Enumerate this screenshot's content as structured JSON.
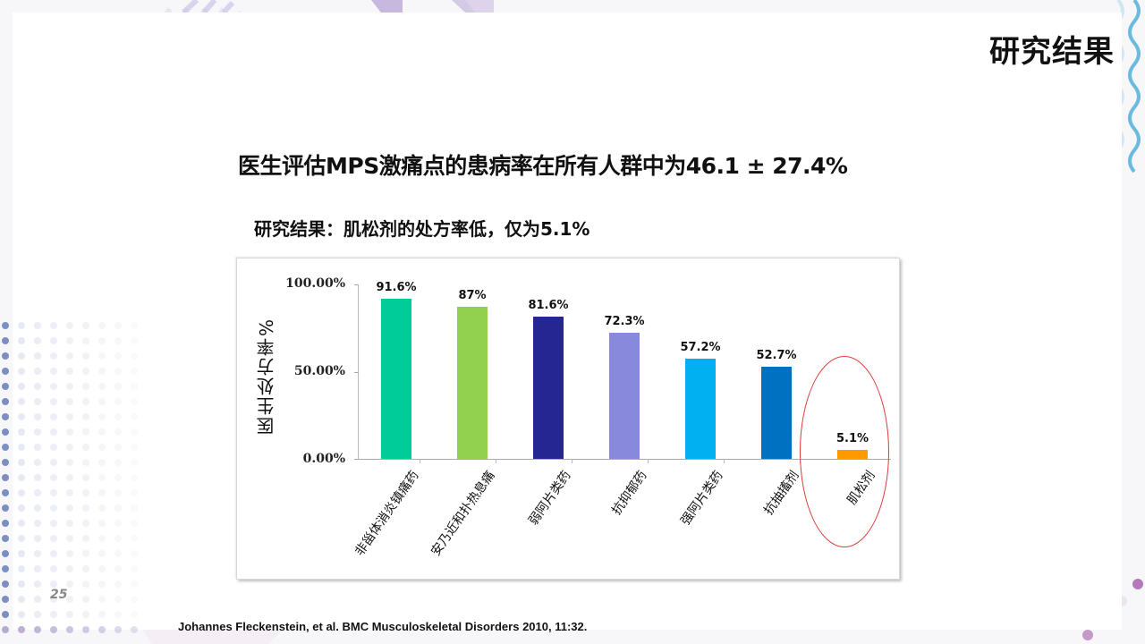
{
  "slide": {
    "title": "研究结果",
    "headline": "医生评估MPS激痛点的患病率在所有人群中为46.1 ± 27.4%",
    "subheadline": "研究结果：肌松剂的处方率低，仅为5.1%",
    "page_number": "25",
    "citation": "Johannes Fleckenstein, et al. BMC Musculoskeletal Disorders 2010, 11:32."
  },
  "chart": {
    "ylabel": "医生处方率%",
    "yticks": [
      "100.00%",
      "50.00%",
      "0.00%"
    ],
    "categories": [
      "非甾体消炎镇痛药",
      "安乃近和扑热息痛",
      "弱阿片类药",
      "抗抑郁药",
      "强阿片类药",
      "抗抽搐剂",
      "肌松剂"
    ],
    "value_labels": [
      "91.6%",
      "87%",
      "81.6%",
      "72.3%",
      "57.2%",
      "52.7%",
      "5.1%"
    ],
    "colors": [
      "#00cc99",
      "#92d050",
      "#262693",
      "#8888dd",
      "#00b0f0",
      "#0070c0",
      "#ff9900"
    ],
    "highlight_color": "#e03a3a"
  },
  "chart_data": {
    "type": "bar",
    "title": "",
    "xlabel": "",
    "ylabel": "医生处方率%",
    "categories": [
      "非甾体消炎镇痛药",
      "安乃近和扑热息痛",
      "弱阿片类药",
      "抗抑郁药",
      "强阿片类药",
      "抗抽搐剂",
      "肌松剂"
    ],
    "values": [
      91.6,
      87.0,
      81.6,
      72.3,
      57.2,
      52.7,
      5.1
    ],
    "value_labels": [
      "91.6%",
      "87%",
      "81.6%",
      "72.3%",
      "57.2%",
      "52.7%",
      "5.1%"
    ],
    "ylim": [
      0,
      100
    ],
    "yticks": [
      0,
      50,
      100
    ],
    "ytick_labels": [
      "0.00%",
      "50.00%",
      "100.00%"
    ],
    "grid": false,
    "legend": "none",
    "annotations": [
      "red ellipse highlighting 肌松剂 (5.1%)"
    ]
  }
}
